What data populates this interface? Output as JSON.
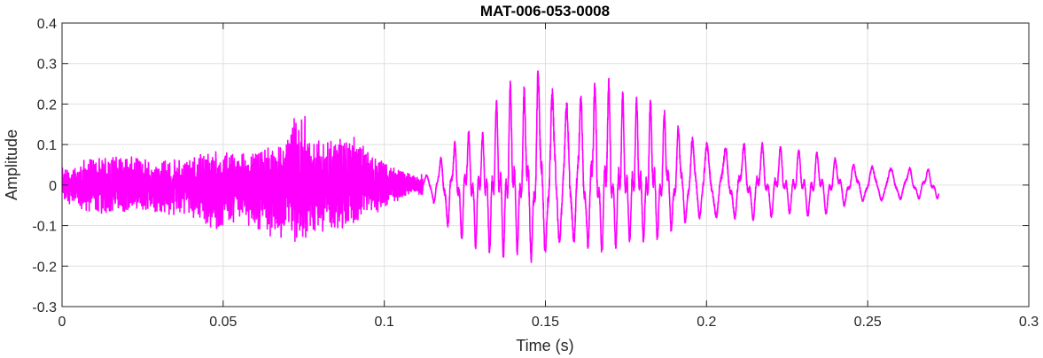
{
  "chart_data": {
    "type": "line",
    "title": "MAT-006-053-0008",
    "xlabel": "Time (s)",
    "ylabel": "Amplitude",
    "xlim": [
      0,
      0.3
    ],
    "ylim": [
      -0.3,
      0.4
    ],
    "xticks": [
      0,
      0.05,
      0.1,
      0.15,
      0.2,
      0.25,
      0.3
    ],
    "xtick_labels": [
      "0",
      "0.05",
      "0.1",
      "0.15",
      "0.2",
      "0.25",
      "0.3"
    ],
    "yticks": [
      -0.3,
      -0.2,
      -0.1,
      0,
      0.1,
      0.2,
      0.3,
      0.4
    ],
    "ytick_labels": [
      "-0.3",
      "-0.2",
      "-0.1",
      "0",
      "0.1",
      "0.2",
      "0.3",
      "0.4"
    ],
    "grid": true,
    "line_color": "#ff00ff",
    "series": [
      {
        "envelope": [
          [
            0.0,
            0.035,
            -0.035
          ],
          [
            0.01,
            0.06,
            -0.06
          ],
          [
            0.02,
            0.06,
            -0.055
          ],
          [
            0.03,
            0.05,
            -0.06
          ],
          [
            0.04,
            0.055,
            -0.065
          ],
          [
            0.047,
            0.08,
            -0.1
          ],
          [
            0.055,
            0.065,
            -0.07
          ],
          [
            0.06,
            0.08,
            -0.1
          ],
          [
            0.067,
            0.08,
            -0.11
          ],
          [
            0.073,
            0.175,
            -0.12
          ],
          [
            0.08,
            0.09,
            -0.1
          ],
          [
            0.09,
            0.11,
            -0.09
          ],
          [
            0.095,
            0.07,
            -0.07
          ],
          [
            0.1,
            0.05,
            -0.05
          ],
          [
            0.105,
            0.03,
            -0.03
          ],
          [
            0.11,
            0.02,
            -0.015
          ],
          [
            0.115,
            0.04,
            -0.05
          ],
          [
            0.118,
            0.09,
            -0.11
          ],
          [
            0.125,
            0.14,
            -0.15
          ],
          [
            0.13,
            0.12,
            -0.16
          ],
          [
            0.138,
            0.27,
            -0.18
          ],
          [
            0.142,
            0.22,
            -0.17
          ],
          [
            0.147,
            0.35,
            -0.22
          ],
          [
            0.155,
            0.27,
            -0.19
          ],
          [
            0.16,
            0.27,
            -0.18
          ],
          [
            0.167,
            0.29,
            -0.18
          ],
          [
            0.175,
            0.22,
            -0.14
          ],
          [
            0.185,
            0.21,
            -0.14
          ],
          [
            0.195,
            0.15,
            -0.11
          ],
          [
            0.205,
            0.12,
            -0.1
          ],
          [
            0.215,
            0.11,
            -0.09
          ],
          [
            0.225,
            0.09,
            -0.07
          ],
          [
            0.235,
            0.08,
            -0.08
          ],
          [
            0.245,
            0.06,
            -0.05
          ],
          [
            0.255,
            0.06,
            -0.05
          ],
          [
            0.265,
            0.05,
            -0.04
          ],
          [
            0.272,
            0.04,
            -0.035
          ]
        ]
      }
    ]
  }
}
